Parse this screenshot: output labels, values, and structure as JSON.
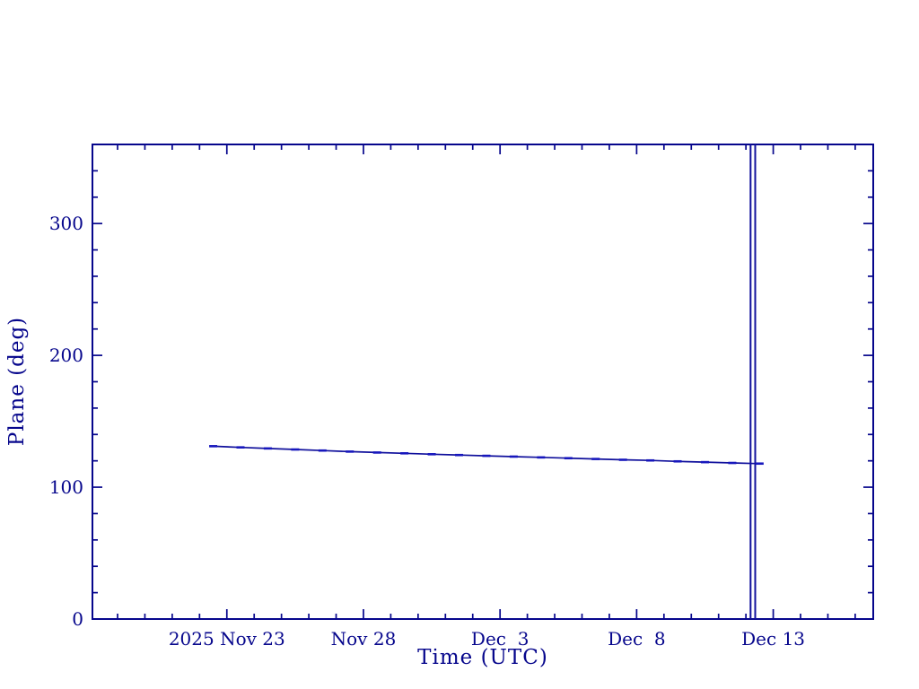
{
  "page": {
    "background": "#ffffff"
  },
  "chart_data": {
    "type": "line",
    "title": "",
    "xlabel": "Time (UTC)",
    "ylabel": "Plane (deg)",
    "axis_color": "#06068c",
    "background": "#ffffff",
    "grid": false,
    "legend": null,
    "x_reference_date": "2025 Nov 23",
    "xlim_days": [
      -4.92,
      23.66
    ],
    "ylim": [
      0,
      360
    ],
    "x_major_ticks": [
      {
        "day": 0,
        "label": "2025 Nov 23"
      },
      {
        "day": 5,
        "label": "Nov 28"
      },
      {
        "day": 10,
        "label": "Dec  3"
      },
      {
        "day": 15,
        "label": "Dec  8"
      },
      {
        "day": 20,
        "label": "Dec 13"
      }
    ],
    "x_minor_tick_step_days": 1,
    "y_major_ticks": [
      {
        "value": 0,
        "label": "0"
      },
      {
        "value": 100,
        "label": "100"
      },
      {
        "value": 200,
        "label": "200"
      },
      {
        "value": 300,
        "label": "300"
      }
    ],
    "y_minor_tick_step": 20,
    "series": [
      {
        "name": "plane-angle",
        "color": "#10109c",
        "marker": "horizontal-dash",
        "marker_color": "#1717bd",
        "points_day_deg": [
          [
            -0.5,
            131.1
          ],
          [
            0.5,
            130.2
          ],
          [
            1.5,
            129.4
          ],
          [
            2.5,
            128.6
          ],
          [
            3.5,
            127.8
          ],
          [
            4.5,
            127.0
          ],
          [
            5.5,
            126.3
          ],
          [
            6.5,
            125.7
          ],
          [
            7.5,
            125.0
          ],
          [
            8.5,
            124.4
          ],
          [
            9.5,
            123.8
          ],
          [
            10.5,
            123.2
          ],
          [
            11.5,
            122.6
          ],
          [
            12.5,
            122.0
          ],
          [
            13.5,
            121.4
          ],
          [
            14.5,
            120.8
          ],
          [
            15.5,
            120.3
          ],
          [
            16.5,
            119.6
          ],
          [
            17.5,
            119.0
          ],
          [
            18.5,
            118.4
          ],
          [
            19.5,
            117.9
          ]
        ]
      }
    ],
    "vertical_marker_lines": {
      "color": "#10109c",
      "days": [
        19.17,
        19.34
      ]
    }
  }
}
